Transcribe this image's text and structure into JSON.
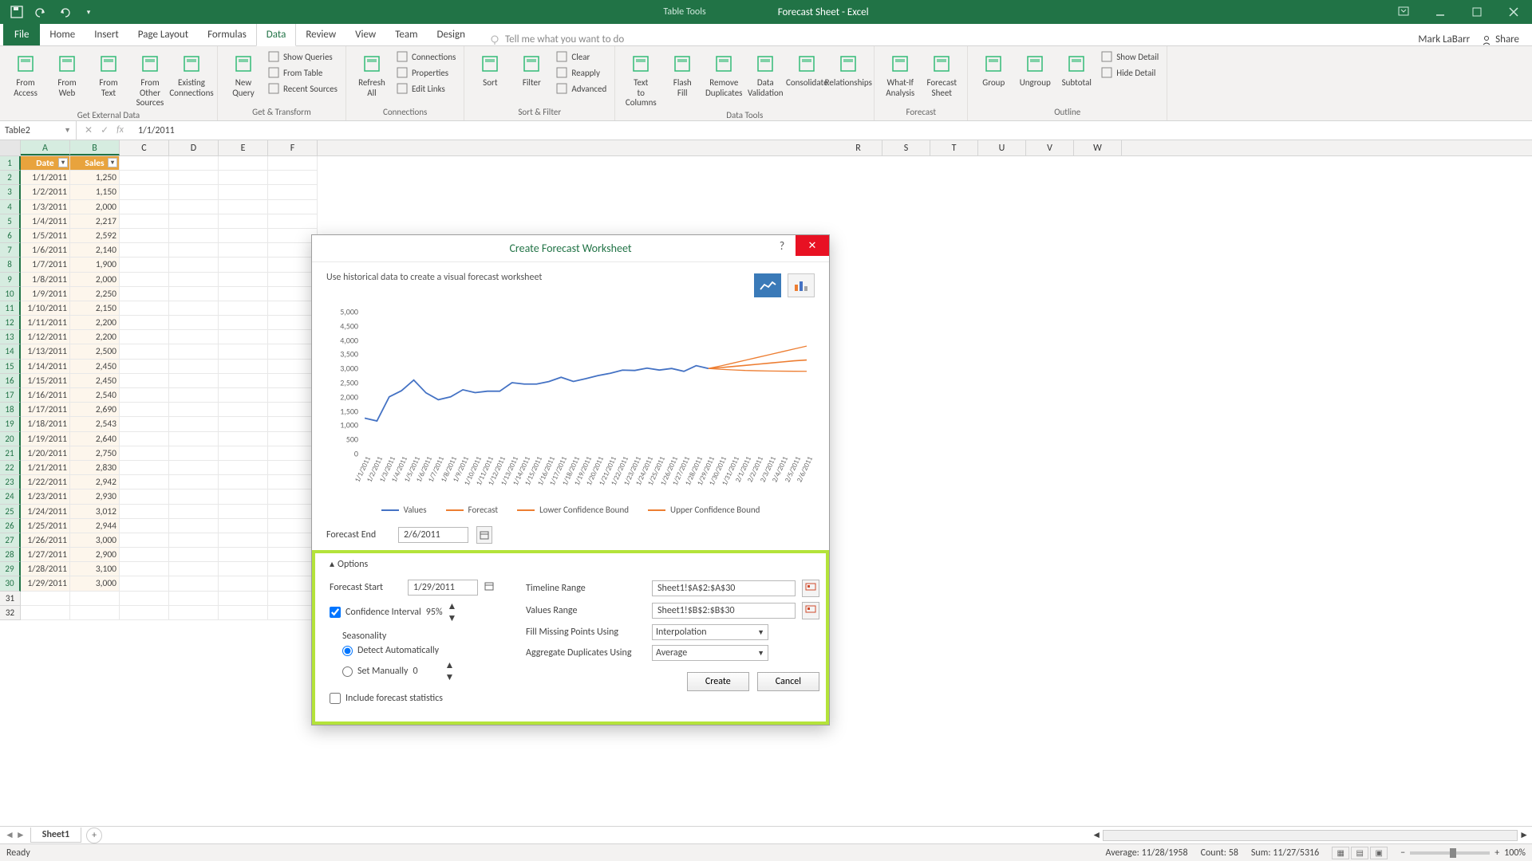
{
  "titlebar": {
    "table_tools": "Table Tools",
    "doc_title": "Forecast Sheet - Excel"
  },
  "ribbon_tabs": {
    "file": "File",
    "tabs": [
      "Home",
      "Insert",
      "Page Layout",
      "Formulas",
      "Data",
      "Review",
      "View",
      "Team",
      "Design"
    ],
    "active_index": 4,
    "tellme": "Tell me what you want to do",
    "user": "Mark LaBarr",
    "share": "Share"
  },
  "ribbon": {
    "groups": [
      {
        "label": "Get External Data",
        "big": [
          "From Access",
          "From Web",
          "From Text",
          "From Other Sources",
          "Existing Connections"
        ]
      },
      {
        "label": "Get & Transform",
        "big": [
          "New Query"
        ],
        "small": [
          "Show Queries",
          "From Table",
          "Recent Sources"
        ]
      },
      {
        "label": "Connections",
        "big": [
          "Refresh All"
        ],
        "small": [
          "Connections",
          "Properties",
          "Edit Links"
        ]
      },
      {
        "label": "Sort & Filter",
        "big": [
          "Sort",
          "Filter"
        ],
        "small": [
          "Clear",
          "Reapply",
          "Advanced"
        ]
      },
      {
        "label": "Data Tools",
        "big": [
          "Text to Columns",
          "Flash Fill",
          "Remove Duplicates",
          "Data Validation",
          "Consolidate",
          "Relationships"
        ]
      },
      {
        "label": "Forecast",
        "big": [
          "What-If Analysis",
          "Forecast Sheet"
        ]
      },
      {
        "label": "Outline",
        "big": [
          "Group",
          "Ungroup",
          "Subtotal"
        ],
        "small": [
          "Show Detail",
          "Hide Detail"
        ]
      }
    ]
  },
  "formula_bar": {
    "name": "Table2",
    "value": "1/1/2011"
  },
  "grid": {
    "cols": [
      "A",
      "B",
      "C",
      "D",
      "E",
      "F",
      "R",
      "S",
      "T",
      "U",
      "V",
      "W"
    ],
    "selected_cols": [
      "A",
      "B"
    ],
    "header": {
      "A": "Date",
      "B": "Sales"
    },
    "rows": [
      {
        "n": 1
      },
      {
        "n": 2,
        "A": "1/1/2011",
        "B": "1,250"
      },
      {
        "n": 3,
        "A": "1/2/2011",
        "B": "1,150"
      },
      {
        "n": 4,
        "A": "1/3/2011",
        "B": "2,000"
      },
      {
        "n": 5,
        "A": "1/4/2011",
        "B": "2,217"
      },
      {
        "n": 6,
        "A": "1/5/2011",
        "B": "2,592"
      },
      {
        "n": 7,
        "A": "1/6/2011",
        "B": "2,140"
      },
      {
        "n": 8,
        "A": "1/7/2011",
        "B": "1,900"
      },
      {
        "n": 9,
        "A": "1/8/2011",
        "B": "2,000"
      },
      {
        "n": 10,
        "A": "1/9/2011",
        "B": "2,250"
      },
      {
        "n": 11,
        "A": "1/10/2011",
        "B": "2,150"
      },
      {
        "n": 12,
        "A": "1/11/2011",
        "B": "2,200"
      },
      {
        "n": 13,
        "A": "1/12/2011",
        "B": "2,200"
      },
      {
        "n": 14,
        "A": "1/13/2011",
        "B": "2,500"
      },
      {
        "n": 15,
        "A": "1/14/2011",
        "B": "2,450"
      },
      {
        "n": 16,
        "A": "1/15/2011",
        "B": "2,450"
      },
      {
        "n": 17,
        "A": "1/16/2011",
        "B": "2,540"
      },
      {
        "n": 18,
        "A": "1/17/2011",
        "B": "2,690"
      },
      {
        "n": 19,
        "A": "1/18/2011",
        "B": "2,543"
      },
      {
        "n": 20,
        "A": "1/19/2011",
        "B": "2,640"
      },
      {
        "n": 21,
        "A": "1/20/2011",
        "B": "2,750"
      },
      {
        "n": 22,
        "A": "1/21/2011",
        "B": "2,830"
      },
      {
        "n": 23,
        "A": "1/22/2011",
        "B": "2,942"
      },
      {
        "n": 24,
        "A": "1/23/2011",
        "B": "2,930"
      },
      {
        "n": 25,
        "A": "1/24/2011",
        "B": "3,012"
      },
      {
        "n": 26,
        "A": "1/25/2011",
        "B": "2,944"
      },
      {
        "n": 27,
        "A": "1/26/2011",
        "B": "3,000"
      },
      {
        "n": 28,
        "A": "1/27/2011",
        "B": "2,900"
      },
      {
        "n": 29,
        "A": "1/28/2011",
        "B": "3,100"
      },
      {
        "n": 30,
        "A": "1/29/2011",
        "B": "3,000"
      },
      {
        "n": 31
      },
      {
        "n": 32
      }
    ]
  },
  "dialog": {
    "title": "Create Forecast Worksheet",
    "hint": "Use historical data to create a visual forecast worksheet",
    "forecast_end_label": "Forecast End",
    "forecast_end": "2/6/2011",
    "options_label": "Options",
    "forecast_start_label": "Forecast Start",
    "forecast_start": "1/29/2011",
    "ci_label": "Confidence Interval",
    "ci_value": "95%",
    "seasonality_label": "Seasonality",
    "detect_auto": "Detect Automatically",
    "set_manual": "Set Manually",
    "set_manual_val": "0",
    "include_stats": "Include forecast statistics",
    "timeline_label": "Timeline Range",
    "timeline_val": "Sheet1!$A$2:$A$30",
    "values_label": "Values Range",
    "values_val": "Sheet1!$B$2:$B$30",
    "fill_label": "Fill Missing Points Using",
    "fill_val": "Interpolation",
    "agg_label": "Aggregate Duplicates Using",
    "agg_val": "Average",
    "create": "Create",
    "cancel": "Cancel",
    "chart": {
      "ylim": [
        0,
        5000
      ],
      "ystep": 500,
      "ylabels": [
        "0",
        "500",
        "1,000",
        "1,500",
        "2,000",
        "2,500",
        "3,000",
        "3,500",
        "4,000",
        "4,500",
        "5,000"
      ],
      "xlabels": [
        "1/1/2011",
        "1/2/2011",
        "1/3/2011",
        "1/4/2011",
        "1/5/2011",
        "1/6/2011",
        "1/7/2011",
        "1/8/2011",
        "1/9/2011",
        "1/10/2011",
        "1/11/2011",
        "1/12/2011",
        "1/13/2011",
        "1/14/2011",
        "1/15/2011",
        "1/16/2011",
        "1/17/2011",
        "1/18/2011",
        "1/19/2011",
        "1/20/2011",
        "1/21/2011",
        "1/22/2011",
        "1/23/2011",
        "1/24/2011",
        "1/25/2011",
        "1/26/2011",
        "1/27/2011",
        "1/28/2011",
        "1/29/2011",
        "1/30/2011",
        "1/31/2011",
        "2/1/2011",
        "2/2/2011",
        "2/3/2011",
        "2/4/2011",
        "2/5/2011",
        "2/6/2011"
      ],
      "values": [
        1250,
        1150,
        2000,
        2217,
        2592,
        2140,
        1900,
        2000,
        2250,
        2150,
        2200,
        2200,
        2500,
        2450,
        2450,
        2540,
        2690,
        2543,
        2640,
        2750,
        2830,
        2942,
        2930,
        3012,
        2944,
        3000,
        2900,
        3100,
        3000
      ],
      "forecast": [
        3000,
        3030,
        3070,
        3110,
        3150,
        3190,
        3230,
        3270,
        3300
      ],
      "lower": [
        3000,
        2970,
        2950,
        2930,
        2920,
        2910,
        2905,
        2902,
        2900
      ],
      "upper": [
        3000,
        3090,
        3190,
        3290,
        3390,
        3490,
        3590,
        3690,
        3790
      ],
      "colors": {
        "values": "#4472c4",
        "forecast": "#ed7d31",
        "lower": "#ed7d31",
        "upper": "#ed7d31"
      },
      "legend": [
        "Values",
        "Forecast",
        "Lower Confidence Bound",
        "Upper Confidence Bound"
      ]
    }
  },
  "sheet_tabs": {
    "active": "Sheet1"
  },
  "statusbar": {
    "ready": "Ready",
    "avg_label": "Average:",
    "avg": "11/28/1958",
    "count_label": "Count:",
    "count": "58",
    "sum_label": "Sum:",
    "sum": "11/27/5316",
    "zoom": "100%"
  }
}
